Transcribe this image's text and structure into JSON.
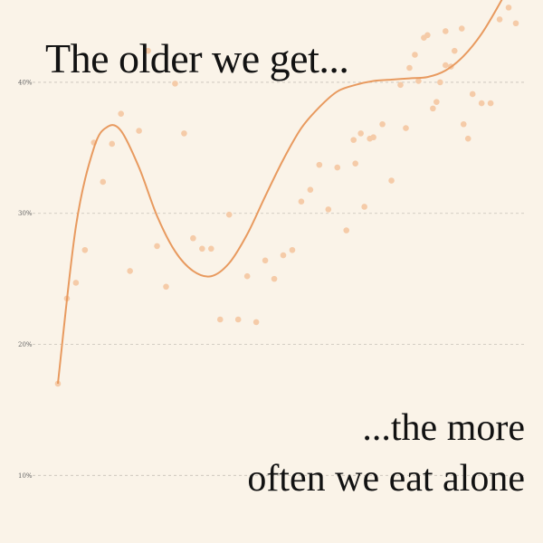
{
  "title": "The older we get...",
  "subtitle": {
    "line1": "...the more",
    "line2": "often we eat alone"
  },
  "colors": {
    "background": "#faf3e8",
    "line": "#e89a5f",
    "points": "#f5cba8",
    "grid": "#c8c2b8",
    "text": "#121212"
  },
  "chart_data": {
    "type": "scatter",
    "title": "The older we get...",
    "xlabel": "",
    "ylabel": "",
    "y_ticks": [
      {
        "value": 10,
        "label": "10%"
      },
      {
        "value": 20,
        "label": "20%"
      },
      {
        "value": 30,
        "label": "30%"
      },
      {
        "value": 40,
        "label": "40%"
      }
    ],
    "xlim": [
      0,
      52
    ],
    "ylim": [
      6.5,
      44
    ],
    "grid": true,
    "points": [
      [
        1,
        17
      ],
      [
        2,
        23.5
      ],
      [
        3,
        24.7
      ],
      [
        4,
        27.2
      ],
      [
        5,
        35.4
      ],
      [
        6,
        32.4
      ],
      [
        7,
        35.3
      ],
      [
        8,
        37.6
      ],
      [
        9,
        25.6
      ],
      [
        10,
        36.3
      ],
      [
        11,
        42.4
      ],
      [
        12,
        27.5
      ],
      [
        13,
        24.4
      ],
      [
        14,
        39.9
      ],
      [
        15,
        36.1
      ],
      [
        16,
        28.1
      ],
      [
        17,
        27.3
      ],
      [
        18,
        27.3
      ],
      [
        19,
        21.9
      ],
      [
        20,
        29.9
      ],
      [
        21,
        21.9
      ],
      [
        22,
        25.2
      ],
      [
        23,
        21.7
      ],
      [
        24,
        26.4
      ],
      [
        25,
        25
      ],
      [
        26,
        26.8
      ],
      [
        27,
        27.2
      ],
      [
        28,
        30.9
      ],
      [
        29,
        31.8
      ],
      [
        30,
        33.7
      ],
      [
        31,
        30.3
      ],
      [
        32,
        33.5
      ],
      [
        33,
        28.7
      ],
      [
        34,
        33.8
      ],
      [
        35,
        30.5
      ],
      [
        36,
        35.8
      ],
      [
        37,
        36.8
      ],
      [
        38,
        32.5
      ],
      [
        39,
        39.8
      ],
      [
        40,
        41.1
      ],
      [
        41,
        40.1
      ],
      [
        42,
        43.6
      ],
      [
        43,
        38.5
      ],
      [
        44,
        41.3
      ],
      [
        45,
        42.4
      ],
      [
        46,
        36.8
      ],
      [
        47,
        39.1
      ],
      [
        48,
        38.4
      ],
      [
        49,
        38.4
      ],
      [
        50,
        44.8
      ],
      [
        51,
        45.7
      ],
      [
        51.8,
        44.5
      ],
      [
        46.5,
        35.7
      ],
      [
        45.8,
        44.1
      ],
      [
        44.6,
        41.2
      ],
      [
        44,
        43.9
      ],
      [
        43.4,
        40
      ],
      [
        42.6,
        38
      ],
      [
        41.6,
        43.4
      ],
      [
        40.6,
        42.1
      ],
      [
        39.6,
        36.5
      ],
      [
        35.6,
        35.7
      ],
      [
        34.6,
        36.1
      ],
      [
        33.8,
        35.6
      ]
    ],
    "trend": [
      [
        1,
        17
      ],
      [
        3,
        29
      ],
      [
        5,
        35
      ],
      [
        6.5,
        36.6
      ],
      [
        8,
        36.3
      ],
      [
        10,
        33.5
      ],
      [
        12,
        29.8
      ],
      [
        14,
        27.1
      ],
      [
        16,
        25.6
      ],
      [
        18,
        25.2
      ],
      [
        20,
        26.2
      ],
      [
        22,
        28.4
      ],
      [
        24,
        31.3
      ],
      [
        26,
        34.1
      ],
      [
        28,
        36.5
      ],
      [
        30,
        38.1
      ],
      [
        32,
        39.3
      ],
      [
        34,
        39.8
      ],
      [
        36,
        40.1
      ],
      [
        38,
        40.2
      ],
      [
        40,
        40.3
      ],
      [
        42,
        40.4
      ],
      [
        44,
        40.9
      ],
      [
        46,
        42
      ],
      [
        48,
        43.7
      ],
      [
        50,
        46
      ],
      [
        51.5,
        48
      ]
    ]
  }
}
